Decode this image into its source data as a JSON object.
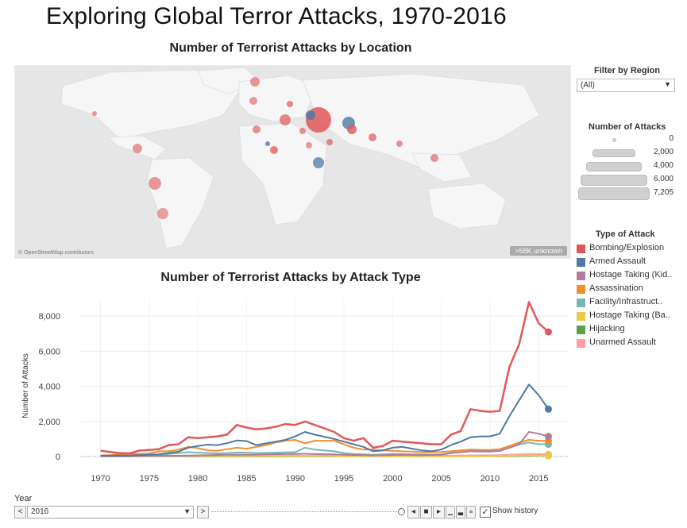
{
  "title": "Exploring Global Terror Attacks, 1970-2016",
  "map": {
    "title": "Number of Terrorist Attacks by Location",
    "credit": "© OpenStreetMap contributors",
    "unknown_badge": ">58K unknown"
  },
  "filter": {
    "label": "Filter by Region",
    "value": "(All)"
  },
  "size_legend": {
    "title": "Number of Attacks",
    "items": [
      {
        "label": "0",
        "value": 0
      },
      {
        "label": "2,000",
        "value": 2000
      },
      {
        "label": "4,000",
        "value": 4000
      },
      {
        "label": "6,000",
        "value": 6000
      },
      {
        "label": "7,205",
        "value": 7205
      }
    ]
  },
  "type_legend": {
    "title": "Type of Attack",
    "items": [
      {
        "label": "Bombing/Explosion",
        "color": "#e15759"
      },
      {
        "label": "Armed Assault",
        "color": "#4e79a7"
      },
      {
        "label": "Hostage Taking (Kid..",
        "color": "#b07aa1"
      },
      {
        "label": "Assassination",
        "color": "#f28e2b"
      },
      {
        "label": "Facility/Infrastruct..",
        "color": "#76b7b2"
      },
      {
        "label": "Hostage Taking (Ba..",
        "color": "#edc948"
      },
      {
        "label": "Hijacking",
        "color": "#59a14f"
      },
      {
        "label": "Unarmed Assault",
        "color": "#ff9da7"
      }
    ]
  },
  "chart_data": {
    "type": "line",
    "title": "Number of Terrorist Attacks by Attack Type",
    "xlabel": "",
    "ylabel": "Number of Attacks",
    "xlim": [
      1968,
      2018
    ],
    "ylim": [
      0,
      9000
    ],
    "xticks": [
      1970,
      1975,
      1980,
      1985,
      1990,
      1995,
      2000,
      2005,
      2010,
      2015
    ],
    "yticks": [
      0,
      2000,
      4000,
      6000,
      8000
    ],
    "ytick_labels": [
      "0",
      "2,000",
      "4,000",
      "6,000",
      "8,000"
    ],
    "grid": true,
    "x": [
      1970,
      1971,
      1972,
      1973,
      1974,
      1975,
      1976,
      1977,
      1978,
      1979,
      1980,
      1981,
      1982,
      1983,
      1984,
      1985,
      1986,
      1987,
      1988,
      1989,
      1990,
      1991,
      1992,
      1994,
      1995,
      1996,
      1997,
      1998,
      1999,
      2000,
      2001,
      2002,
      2003,
      2004,
      2005,
      2006,
      2007,
      2008,
      2009,
      2010,
      2011,
      2012,
      2013,
      2014,
      2015,
      2016
    ],
    "series": [
      {
        "name": "Bombing/Explosion",
        "color": "#e15759",
        "values": [
          330,
          260,
          200,
          180,
          340,
          380,
          420,
          650,
          700,
          1100,
          1050,
          1100,
          1150,
          1250,
          1800,
          1650,
          1550,
          1600,
          1700,
          1850,
          1800,
          2000,
          1800,
          1400,
          1050,
          900,
          1050,
          500,
          600,
          900,
          850,
          800,
          750,
          700,
          700,
          1250,
          1450,
          2700,
          2600,
          2550,
          2600,
          5100,
          6400,
          8800,
          7600,
          7100
        ]
      },
      {
        "name": "Armed Assault",
        "color": "#4e79a7",
        "values": [
          60,
          50,
          60,
          60,
          80,
          100,
          130,
          200,
          280,
          500,
          600,
          680,
          650,
          760,
          920,
          880,
          650,
          750,
          850,
          950,
          1150,
          1400,
          1250,
          1000,
          850,
          700,
          550,
          300,
          350,
          500,
          550,
          450,
          350,
          300,
          400,
          650,
          850,
          1100,
          1150,
          1150,
          1300,
          2300,
          3200,
          4100,
          3500,
          2700
        ]
      },
      {
        "name": "Hostage Taking (Kidnapping)",
        "color": "#b07aa1",
        "values": [
          20,
          20,
          20,
          20,
          30,
          30,
          40,
          40,
          50,
          60,
          70,
          80,
          90,
          100,
          110,
          100,
          100,
          120,
          130,
          140,
          150,
          160,
          140,
          120,
          100,
          90,
          80,
          70,
          80,
          90,
          100,
          90,
          80,
          90,
          100,
          200,
          250,
          300,
          310,
          300,
          320,
          500,
          700,
          1400,
          1300,
          1150
        ]
      },
      {
        "name": "Assassination",
        "color": "#f28e2b",
        "values": [
          60,
          80,
          130,
          160,
          150,
          170,
          300,
          300,
          400,
          550,
          480,
          350,
          330,
          420,
          500,
          450,
          550,
          650,
          800,
          900,
          950,
          750,
          900,
          900,
          700,
          500,
          400,
          400,
          350,
          320,
          300,
          280,
          250,
          250,
          260,
          300,
          350,
          400,
          380,
          380,
          420,
          600,
          800,
          950,
          900,
          900
        ]
      },
      {
        "name": "Facility/Infrastructure Attack",
        "color": "#76b7b2",
        "values": [
          40,
          40,
          50,
          50,
          60,
          80,
          100,
          150,
          200,
          250,
          220,
          200,
          180,
          200,
          230,
          220,
          200,
          210,
          220,
          240,
          250,
          500,
          400,
          300,
          200,
          150,
          130,
          100,
          120,
          150,
          140,
          130,
          120,
          110,
          120,
          200,
          250,
          300,
          280,
          280,
          320,
          500,
          700,
          800,
          700,
          700
        ]
      },
      {
        "name": "Hostage Taking (Barricade Incident)",
        "color": "#edc948",
        "values": [
          10,
          10,
          10,
          15,
          20,
          20,
          30,
          30,
          30,
          40,
          40,
          40,
          40,
          40,
          40,
          40,
          40,
          40,
          40,
          40,
          30,
          30,
          30,
          30,
          20,
          20,
          20,
          20,
          20,
          20,
          20,
          20,
          20,
          20,
          20,
          20,
          20,
          20,
          20,
          20,
          30,
          40,
          60,
          70,
          60,
          60
        ]
      },
      {
        "name": "Hijacking",
        "color": "#59a14f",
        "values": [
          20,
          20,
          20,
          20,
          20,
          20,
          20,
          20,
          20,
          20,
          20,
          20,
          20,
          20,
          20,
          20,
          20,
          20,
          20,
          20,
          20,
          20,
          20,
          20,
          20,
          20,
          20,
          20,
          20,
          20,
          20,
          20,
          20,
          20,
          20,
          20,
          20,
          20,
          20,
          20,
          20,
          20,
          30,
          40,
          50,
          50
        ]
      },
      {
        "name": "Unarmed Assault",
        "color": "#ff9da7",
        "values": [
          20,
          20,
          20,
          20,
          20,
          20,
          30,
          30,
          30,
          40,
          40,
          40,
          40,
          40,
          40,
          40,
          40,
          40,
          40,
          50,
          50,
          50,
          50,
          50,
          40,
          40,
          40,
          40,
          40,
          40,
          40,
          40,
          40,
          40,
          40,
          50,
          60,
          70,
          70,
          70,
          80,
          100,
          120,
          150,
          140,
          120
        ]
      }
    ]
  },
  "timeline": {
    "label": "Year",
    "value": "2016",
    "prev": "<",
    "next": ">",
    "show_history": "Show history"
  }
}
